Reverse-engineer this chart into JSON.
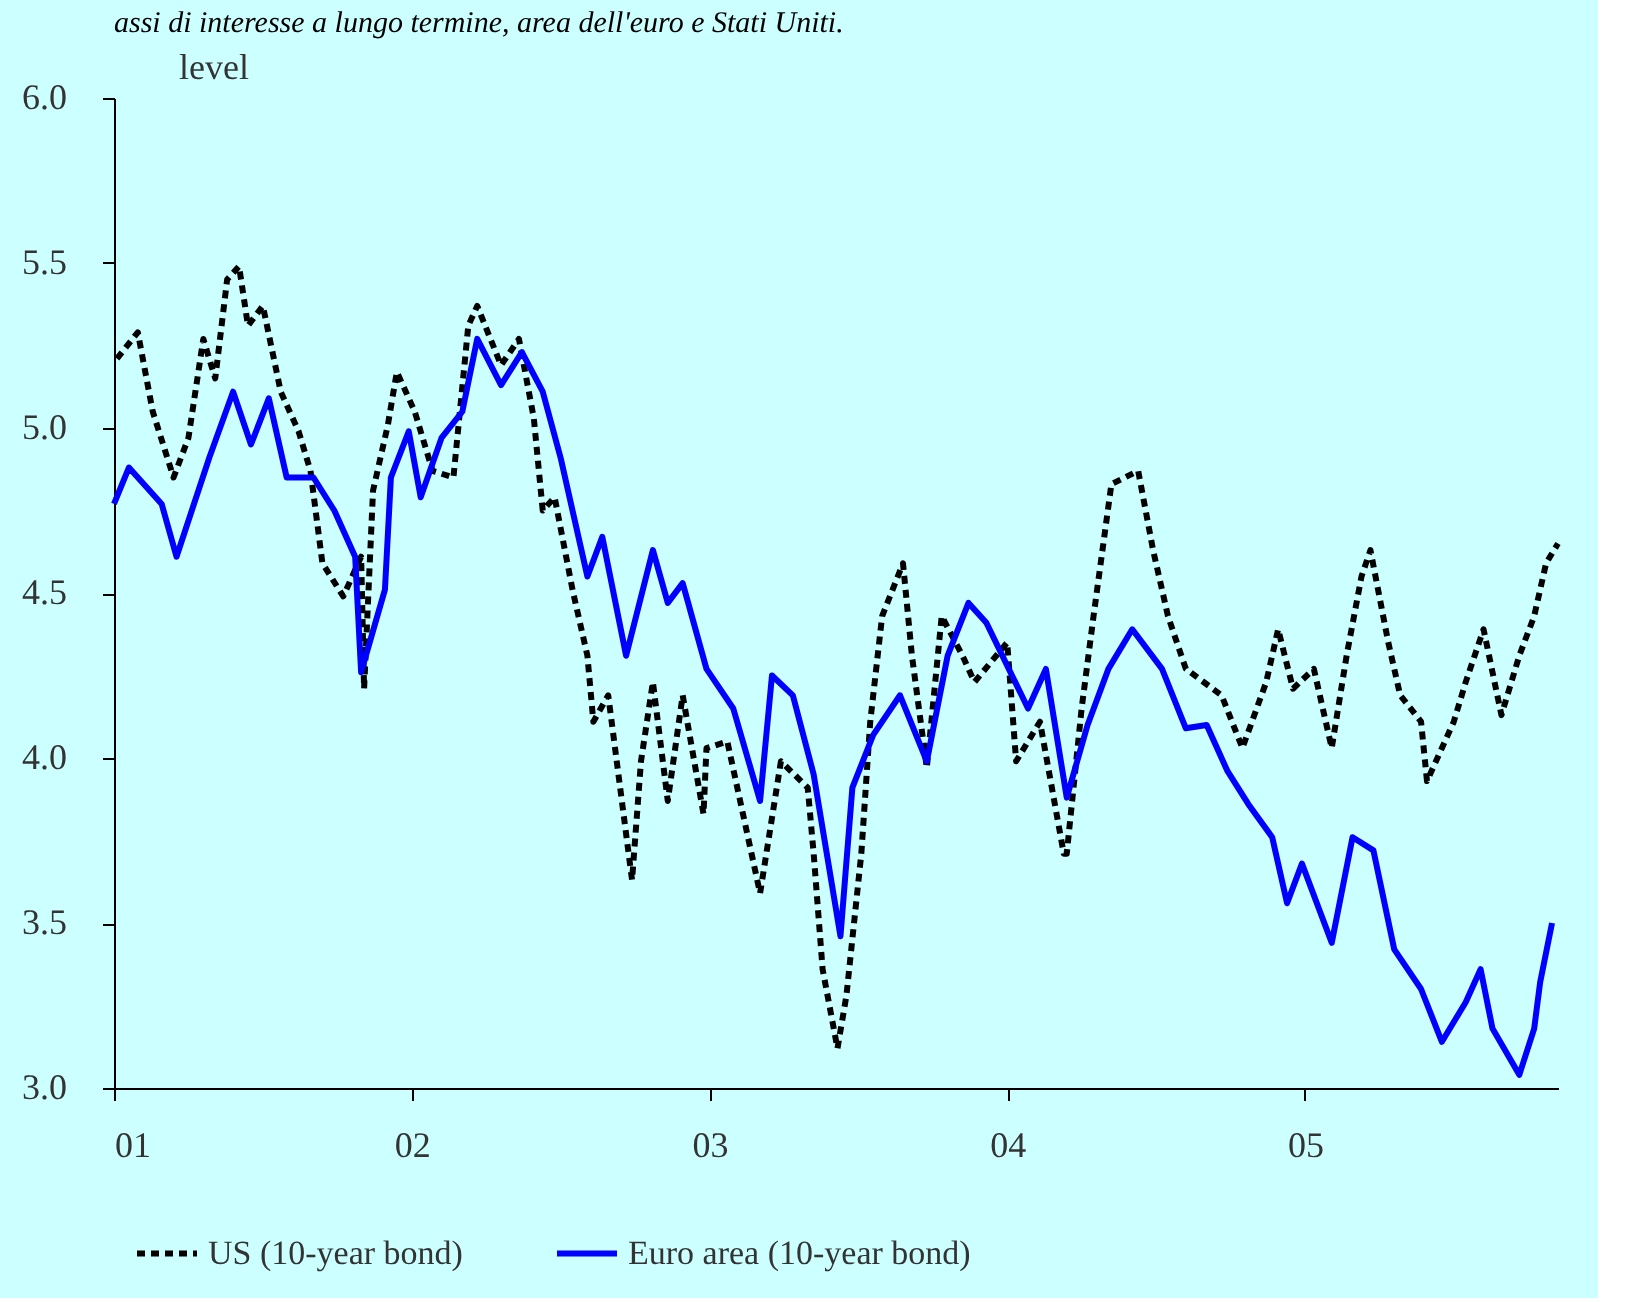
{
  "chart_data": {
    "type": "line",
    "title": "assi di interesse a lungo termine, area dell'euro e Stati Uniti.",
    "ylabel": "level",
    "xlim": [
      2001,
      2005.85
    ],
    "xticks": [
      {
        "value": 2001,
        "label": "01"
      },
      {
        "value": 2002,
        "label": "02"
      },
      {
        "value": 2003,
        "label": "03"
      },
      {
        "value": 2004,
        "label": "04"
      },
      {
        "value": 2005,
        "label": "05"
      }
    ],
    "ylim": [
      3,
      6
    ],
    "yticks": [
      {
        "value": 3,
        "label": "3.0"
      },
      {
        "value": 3.5,
        "label": "3.5"
      },
      {
        "value": 4,
        "label": "4.0"
      },
      {
        "value": 4.5,
        "label": "4.5"
      },
      {
        "value": 5,
        "label": "5.0"
      },
      {
        "value": 5.5,
        "label": "5.5"
      },
      {
        "value": 6,
        "label": "6.0"
      }
    ],
    "grid": false,
    "legend": "bottom",
    "marker": "none",
    "series": [
      {
        "name": "US (10-year bond)",
        "color": "#000000",
        "line_style": "dashed",
        "x": [
          2001.01,
          2001.08,
          2001.13,
          2001.2,
          2001.25,
          2001.3,
          2001.34,
          2001.38,
          2001.42,
          2001.45,
          2001.5,
          2001.56,
          2001.62,
          2001.66,
          2001.7,
          2001.77,
          2001.83,
          2001.84,
          2001.87,
          2001.92,
          2001.95,
          2002.01,
          2002.07,
          2002.14,
          2002.19,
          2002.22,
          2002.3,
          2002.36,
          2002.41,
          2002.44,
          2002.48,
          2002.54,
          2002.59,
          2002.61,
          2002.66,
          2002.74,
          2002.77,
          2002.81,
          2002.86,
          2002.91,
          2002.98,
          2002.99,
          2003.06,
          2003.17,
          2003.24,
          2003.33,
          2003.35,
          2003.38,
          2003.43,
          2003.46,
          2003.51,
          2003.54,
          2003.58,
          2003.65,
          2003.68,
          2003.73,
          2003.78,
          2003.85,
          2003.89,
          2004.0,
          2004.03,
          2004.11,
          2004.19,
          2004.2,
          2004.25,
          2004.29,
          2004.35,
          2004.44,
          2004.49,
          2004.54,
          2004.6,
          2004.72,
          2004.79,
          2004.87,
          2004.91,
          2004.96,
          2005.03,
          2005.09,
          2005.14,
          2005.19,
          2005.22,
          2005.28,
          2005.32,
          2005.39,
          2005.41,
          2005.5,
          2005.54,
          2005.6,
          2005.66,
          2005.72,
          2005.77,
          2005.81,
          2005.85
        ],
        "values": [
          5.21,
          5.29,
          5.05,
          4.85,
          4.97,
          5.27,
          5.15,
          5.45,
          5.49,
          5.31,
          5.37,
          5.11,
          4.99,
          4.87,
          4.59,
          4.49,
          4.61,
          4.21,
          4.81,
          5.01,
          5.17,
          5.05,
          4.87,
          4.85,
          5.31,
          5.37,
          5.19,
          5.27,
          5.03,
          4.75,
          4.79,
          4.51,
          4.31,
          4.11,
          4.19,
          3.63,
          3.99,
          4.23,
          3.87,
          4.19,
          3.83,
          4.03,
          4.05,
          3.59,
          3.99,
          3.91,
          3.71,
          3.36,
          3.12,
          3.28,
          3.71,
          4.11,
          4.43,
          4.59,
          4.31,
          3.97,
          4.43,
          4.31,
          4.23,
          4.35,
          3.99,
          4.11,
          3.71,
          3.71,
          4.15,
          4.43,
          4.83,
          4.87,
          4.63,
          4.43,
          4.27,
          4.19,
          4.03,
          4.23,
          4.39,
          4.21,
          4.27,
          4.03,
          4.31,
          4.55,
          4.63,
          4.35,
          4.19,
          4.11,
          3.93,
          4.11,
          4.23,
          4.39,
          4.13,
          4.31,
          4.43,
          4.59,
          4.65
        ]
      },
      {
        "name": "Euro area (10-year bond)",
        "color": "#0000ff",
        "line_style": "solid",
        "x": [
          2001.0,
          2001.05,
          2001.16,
          2001.21,
          2001.32,
          2001.4,
          2001.46,
          2001.52,
          2001.58,
          2001.67,
          2001.74,
          2001.81,
          2001.83,
          2001.91,
          2001.93,
          2001.99,
          2002.03,
          2002.1,
          2002.17,
          2002.22,
          2002.3,
          2002.37,
          2002.44,
          2002.5,
          2002.59,
          2002.64,
          2002.72,
          2002.81,
          2002.86,
          2002.91,
          2002.99,
          2003.08,
          2003.17,
          2003.21,
          2003.28,
          2003.35,
          2003.44,
          2003.48,
          2003.55,
          2003.64,
          2003.73,
          2003.8,
          2003.87,
          2003.93,
          2004.07,
          2004.13,
          2004.2,
          2004.27,
          2004.34,
          2004.42,
          2004.52,
          2004.6,
          2004.67,
          2004.74,
          2004.81,
          2004.89,
          2004.94,
          2004.99,
          2005.09,
          2005.16,
          2005.23,
          2005.3,
          2005.39,
          2005.46,
          2005.54,
          2005.59,
          2005.63,
          2005.72,
          2005.77,
          2005.79,
          2005.83
        ],
        "values": [
          4.77,
          4.88,
          4.77,
          4.61,
          4.91,
          5.11,
          4.95,
          5.09,
          4.85,
          4.85,
          4.75,
          4.61,
          4.26,
          4.51,
          4.85,
          4.99,
          4.79,
          4.97,
          5.05,
          5.27,
          5.13,
          5.23,
          5.11,
          4.91,
          4.55,
          4.67,
          4.31,
          4.63,
          4.47,
          4.53,
          4.27,
          4.15,
          3.87,
          4.25,
          4.19,
          3.95,
          3.46,
          3.91,
          4.07,
          4.19,
          3.99,
          4.31,
          4.47,
          4.41,
          4.15,
          4.27,
          3.88,
          4.1,
          4.27,
          4.39,
          4.27,
          4.09,
          4.1,
          3.96,
          3.86,
          3.76,
          3.56,
          3.68,
          3.44,
          3.76,
          3.72,
          3.42,
          3.3,
          3.14,
          3.26,
          3.36,
          3.18,
          3.04,
          3.18,
          3.32,
          3.5
        ]
      }
    ]
  }
}
